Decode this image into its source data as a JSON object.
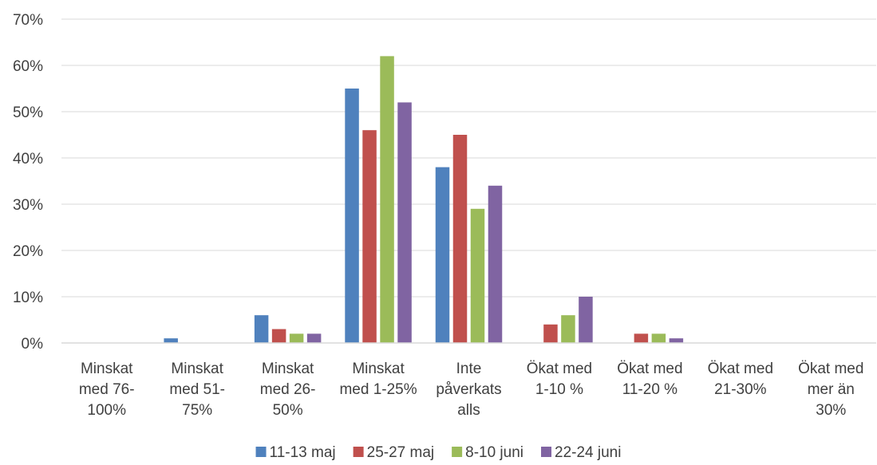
{
  "chart_data": {
    "type": "bar",
    "categories": [
      [
        "Minskat",
        "med 76-",
        "100%"
      ],
      [
        "Minskat",
        "med 51-",
        "75%"
      ],
      [
        "Minskat",
        "med 26-",
        "50%"
      ],
      [
        "Minskat",
        "med 1-25%"
      ],
      [
        "Inte",
        "påverkats",
        "alls"
      ],
      [
        "Ökat med",
        "1-10 %"
      ],
      [
        "Ökat med",
        "11-20 %"
      ],
      [
        "Ökat med",
        "21-30%"
      ],
      [
        "Ökat med",
        "mer än",
        "30%"
      ]
    ],
    "series": [
      {
        "name": "11-13 maj",
        "color": "#4f81bd",
        "values": [
          0,
          1,
          6,
          55,
          38,
          0,
          0,
          0,
          0
        ]
      },
      {
        "name": "25-27 maj",
        "color": "#c0504d",
        "values": [
          0,
          0,
          3,
          46,
          45,
          4,
          2,
          0,
          0
        ]
      },
      {
        "name": "8-10 juni",
        "color": "#9bbb59",
        "values": [
          0,
          0,
          2,
          62,
          29,
          6,
          2,
          0,
          0
        ]
      },
      {
        "name": "22-24 juni",
        "color": "#8064a2",
        "values": [
          0,
          0,
          2,
          52,
          34,
          10,
          1,
          0,
          0
        ]
      }
    ],
    "yticks": [
      "0%",
      "10%",
      "20%",
      "30%",
      "40%",
      "50%",
      "60%",
      "70%"
    ],
    "ylim": [
      0,
      70
    ],
    "grid": true,
    "legend_position": "bottom"
  }
}
